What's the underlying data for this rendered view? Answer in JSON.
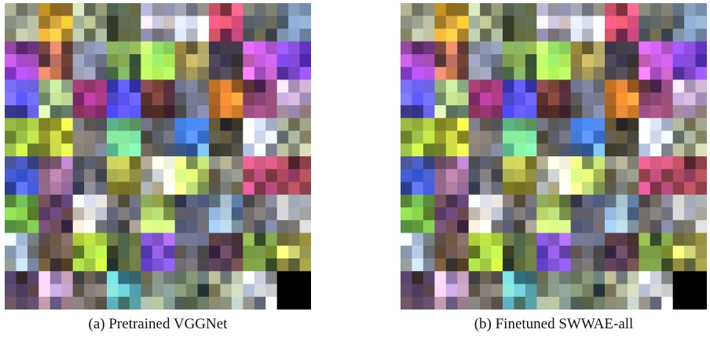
{
  "captions": {
    "a": "(a) Pretrained VGGNet",
    "b": "(b) Finetuned SWWAE-all"
  },
  "filter_colors": [
    [
      "#8a8f80",
      "#c89a30",
      "#9aa68a",
      "#4d5a45",
      "#b9b3c3",
      "#c8c9cf",
      "#c54a6c",
      "#5a5f5a",
      "#8aa1b8"
    ],
    [
      "#8c3fb2",
      "#b06a52",
      "#7d7f8c",
      "#6a8d4c",
      "#93d85a",
      "#b7a55c",
      "#3b3644",
      "#b457c0",
      "#6d3dbf"
    ],
    [
      "#5b57e6",
      "#9fbf8a",
      "#b8408f",
      "#4c46d1",
      "#6c3a3e",
      "#6a6f84",
      "#d07a30",
      "#7c3f63",
      "#c2a6c4"
    ],
    [
      "#94b13a",
      "#b8c23b",
      "#6b6a70",
      "#6fc98d",
      "#55565c",
      "#4f83dd",
      "#4e4a3a",
      "#b6bcca",
      "#9aa28f"
    ],
    [
      "#3c4fb0",
      "#9a6ea4",
      "#6b6a70",
      "#a0a040",
      "#c4c4b4",
      "#c0d86c",
      "#7d7f74",
      "#b04a6c",
      "#8b3c4b"
    ],
    [
      "#6fb24a",
      "#6e4a6a",
      "#c0c0c4",
      "#6b6a70",
      "#b1cf66",
      "#4e5060",
      "#8aa8c4",
      "#6c6a74",
      "#a0a0a0"
    ],
    [
      "#a8b7c7",
      "#6b5544",
      "#a6cd3f",
      "#4e5f40",
      "#7a4fd0",
      "#5a5a6a",
      "#6c4a5a",
      "#6e8b3a",
      "#c2c062"
    ],
    [
      "#4a3a4e",
      "#c4a1c8",
      "#6b6a70",
      "#6cc0c0",
      "#7c8a7a",
      "#5a6a5a",
      "#9aa28f",
      "#b9bcc4",
      "#000000"
    ]
  ]
}
